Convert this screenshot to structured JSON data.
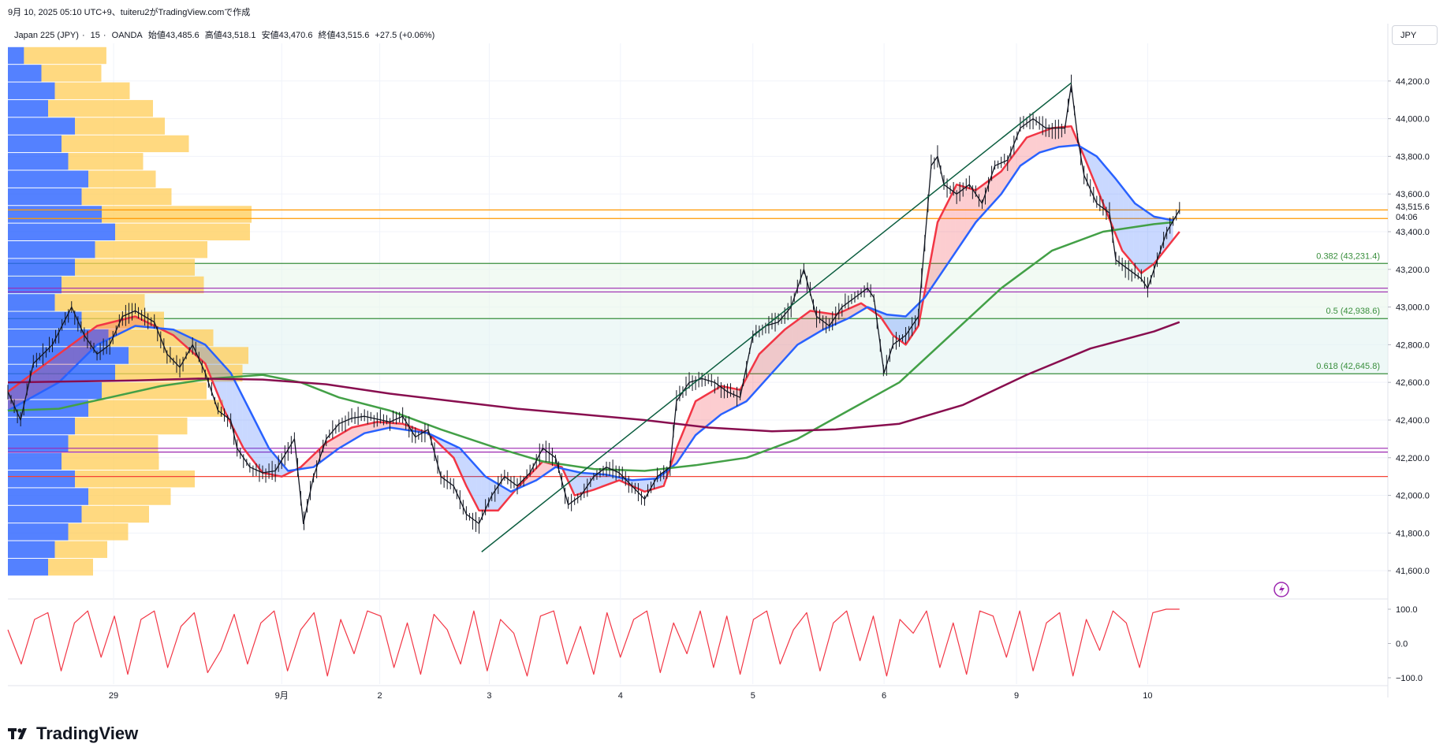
{
  "header": {
    "timestamp": "9月 10, 2025 05:10 UTC+9、tuiteru2がTradingView.comで作成"
  },
  "symbol": {
    "name": "Japan 225 (JPY)",
    "interval": "15",
    "broker": "OANDA",
    "open": "始値43,485.6",
    "high": "高値43,518.1",
    "low": "安値43,470.6",
    "close": "終値43,515.6",
    "change": "+27.5 (+0.06%)"
  },
  "currency": "JPY",
  "price_badge": {
    "value": "43,515.6",
    "countdown": "04:06"
  },
  "logo": {
    "text": "TradingView",
    "icon": "tradingview-logo-icon"
  },
  "colors": {
    "candle": "#131722",
    "ema_fast": "#f23645",
    "ema_mid": "#2962ff",
    "sma_200": "#43a047",
    "sma_long": "#880e4f",
    "bull_fill": "#f2364533",
    "bear_fill": "#2962ff33",
    "fib": "#388e3c",
    "channel": "#0b5d3f",
    "vp_up": "#2962ff",
    "vp_down": "#ffcc55",
    "osc": "#f23645",
    "price_line": "#ff9800"
  },
  "chart_data": {
    "type": "line",
    "title": "",
    "yaxis": {
      "range": [
        41450,
        44400
      ],
      "ticks": [
        {
          "value": 41600,
          "label": "41,600.0"
        },
        {
          "value": 41800,
          "label": "41,800.0"
        },
        {
          "value": 42000,
          "label": "42,000.0"
        },
        {
          "value": 42200,
          "label": "42,200.0"
        },
        {
          "value": 42400,
          "label": "42,400.0"
        },
        {
          "value": 42600,
          "label": "42,600.0"
        },
        {
          "value": 42800,
          "label": "42,800.0"
        },
        {
          "value": 43000,
          "label": "43,000.0"
        },
        {
          "value": 43200,
          "label": "43,200.0"
        },
        {
          "value": 43400,
          "label": "43,400.0"
        },
        {
          "value": 43600,
          "label": "43,600.0"
        },
        {
          "value": 43800,
          "label": "43,800.0"
        },
        {
          "value": 44000,
          "label": "44,000.0"
        },
        {
          "value": 44200,
          "label": "44,200.0"
        }
      ]
    },
    "xaxis": {
      "range": [
        0,
        1
      ],
      "ticks": [
        {
          "t": 0.083,
          "label": "29"
        },
        {
          "t": 0.215,
          "label": "9月"
        },
        {
          "t": 0.292,
          "label": "2"
        },
        {
          "t": 0.378,
          "label": "3"
        },
        {
          "t": 0.481,
          "label": "4"
        },
        {
          "t": 0.585,
          "label": "5"
        },
        {
          "t": 0.688,
          "label": "6"
        },
        {
          "t": 0.792,
          "label": "9"
        },
        {
          "t": 0.895,
          "label": "10"
        }
      ]
    },
    "price": [
      [
        0.0,
        42550
      ],
      [
        0.01,
        42400
      ],
      [
        0.02,
        42700
      ],
      [
        0.035,
        42800
      ],
      [
        0.05,
        43000
      ],
      [
        0.06,
        42850
      ],
      [
        0.07,
        42750
      ],
      [
        0.08,
        42800
      ],
      [
        0.09,
        42950
      ],
      [
        0.1,
        42980
      ],
      [
        0.115,
        42920
      ],
      [
        0.125,
        42750
      ],
      [
        0.135,
        42680
      ],
      [
        0.145,
        42800
      ],
      [
        0.155,
        42650
      ],
      [
        0.165,
        42450
      ],
      [
        0.175,
        42400
      ],
      [
        0.18,
        42250
      ],
      [
        0.19,
        42150
      ],
      [
        0.2,
        42120
      ],
      [
        0.21,
        42130
      ],
      [
        0.225,
        42300
      ],
      [
        0.232,
        41850
      ],
      [
        0.24,
        42100
      ],
      [
        0.25,
        42300
      ],
      [
        0.26,
        42380
      ],
      [
        0.27,
        42410
      ],
      [
        0.28,
        42420
      ],
      [
        0.3,
        42390
      ],
      [
        0.31,
        42420
      ],
      [
        0.32,
        42310
      ],
      [
        0.33,
        42350
      ],
      [
        0.34,
        42100
      ],
      [
        0.35,
        42050
      ],
      [
        0.36,
        41900
      ],
      [
        0.37,
        41850
      ],
      [
        0.38,
        42000
      ],
      [
        0.39,
        42100
      ],
      [
        0.4,
        42050
      ],
      [
        0.41,
        42120
      ],
      [
        0.42,
        42250
      ],
      [
        0.43,
        42200
      ],
      [
        0.44,
        41950
      ],
      [
        0.45,
        42000
      ],
      [
        0.46,
        42100
      ],
      [
        0.47,
        42150
      ],
      [
        0.48,
        42120
      ],
      [
        0.49,
        42050
      ],
      [
        0.5,
        41980
      ],
      [
        0.51,
        42100
      ],
      [
        0.52,
        42150
      ],
      [
        0.525,
        42500
      ],
      [
        0.535,
        42600
      ],
      [
        0.545,
        42620
      ],
      [
        0.555,
        42600
      ],
      [
        0.565,
        42550
      ],
      [
        0.575,
        42520
      ],
      [
        0.585,
        42850
      ],
      [
        0.595,
        42900
      ],
      [
        0.605,
        42920
      ],
      [
        0.615,
        43000
      ],
      [
        0.625,
        43200
      ],
      [
        0.635,
        42950
      ],
      [
        0.645,
        42900
      ],
      [
        0.655,
        43000
      ],
      [
        0.665,
        43050
      ],
      [
        0.675,
        43100
      ],
      [
        0.68,
        43050
      ],
      [
        0.688,
        42650
      ],
      [
        0.695,
        42800
      ],
      [
        0.705,
        42850
      ],
      [
        0.715,
        42950
      ],
      [
        0.72,
        43350
      ],
      [
        0.725,
        43750
      ],
      [
        0.73,
        43800
      ],
      [
        0.735,
        43650
      ],
      [
        0.745,
        43600
      ],
      [
        0.755,
        43650
      ],
      [
        0.765,
        43550
      ],
      [
        0.775,
        43750
      ],
      [
        0.785,
        43780
      ],
      [
        0.795,
        43950
      ],
      [
        0.805,
        44000
      ],
      [
        0.815,
        43950
      ],
      [
        0.825,
        43950
      ],
      [
        0.83,
        43950
      ],
      [
        0.835,
        44180
      ],
      [
        0.84,
        43900
      ],
      [
        0.845,
        43700
      ],
      [
        0.855,
        43550
      ],
      [
        0.865,
        43500
      ],
      [
        0.87,
        43250
      ],
      [
        0.88,
        43200
      ],
      [
        0.89,
        43150
      ],
      [
        0.895,
        43100
      ],
      [
        0.9,
        43200
      ],
      [
        0.91,
        43400
      ],
      [
        0.92,
        43515
      ]
    ],
    "series": [
      {
        "name": "",
        "color": "#f23645",
        "points": [
          [
            0.0,
            42550
          ],
          [
            0.04,
            42750
          ],
          [
            0.07,
            42900
          ],
          [
            0.1,
            42950
          ],
          [
            0.13,
            42850
          ],
          [
            0.155,
            42700
          ],
          [
            0.17,
            42450
          ],
          [
            0.185,
            42250
          ],
          [
            0.2,
            42120
          ],
          [
            0.215,
            42100
          ],
          [
            0.23,
            42150
          ],
          [
            0.25,
            42280
          ],
          [
            0.27,
            42360
          ],
          [
            0.29,
            42390
          ],
          [
            0.31,
            42380
          ],
          [
            0.33,
            42330
          ],
          [
            0.35,
            42200
          ],
          [
            0.36,
            42050
          ],
          [
            0.37,
            41920
          ],
          [
            0.385,
            41920
          ],
          [
            0.4,
            42040
          ],
          [
            0.42,
            42180
          ],
          [
            0.435,
            42150
          ],
          [
            0.445,
            42000
          ],
          [
            0.46,
            42030
          ],
          [
            0.48,
            42080
          ],
          [
            0.5,
            42020
          ],
          [
            0.515,
            42050
          ],
          [
            0.525,
            42250
          ],
          [
            0.54,
            42500
          ],
          [
            0.56,
            42580
          ],
          [
            0.575,
            42560
          ],
          [
            0.59,
            42750
          ],
          [
            0.61,
            42880
          ],
          [
            0.63,
            42980
          ],
          [
            0.65,
            42960
          ],
          [
            0.67,
            43020
          ],
          [
            0.685,
            42950
          ],
          [
            0.695,
            42850
          ],
          [
            0.705,
            42800
          ],
          [
            0.715,
            42900
          ],
          [
            0.73,
            43450
          ],
          [
            0.745,
            43650
          ],
          [
            0.76,
            43620
          ],
          [
            0.78,
            43720
          ],
          [
            0.8,
            43900
          ],
          [
            0.82,
            43950
          ],
          [
            0.835,
            43960
          ],
          [
            0.845,
            43800
          ],
          [
            0.86,
            43550
          ],
          [
            0.875,
            43300
          ],
          [
            0.89,
            43180
          ],
          [
            0.9,
            43230
          ],
          [
            0.92,
            43400
          ]
        ]
      },
      {
        "name": "",
        "color": "#2962ff",
        "points": [
          [
            0.0,
            42450
          ],
          [
            0.04,
            42600
          ],
          [
            0.07,
            42800
          ],
          [
            0.1,
            42900
          ],
          [
            0.13,
            42880
          ],
          [
            0.155,
            42800
          ],
          [
            0.175,
            42650
          ],
          [
            0.19,
            42450
          ],
          [
            0.205,
            42250
          ],
          [
            0.22,
            42130
          ],
          [
            0.24,
            42150
          ],
          [
            0.26,
            42250
          ],
          [
            0.28,
            42330
          ],
          [
            0.3,
            42360
          ],
          [
            0.33,
            42330
          ],
          [
            0.355,
            42250
          ],
          [
            0.375,
            42100
          ],
          [
            0.395,
            42020
          ],
          [
            0.415,
            42080
          ],
          [
            0.43,
            42150
          ],
          [
            0.45,
            42120
          ],
          [
            0.47,
            42110
          ],
          [
            0.49,
            42080
          ],
          [
            0.51,
            42090
          ],
          [
            0.525,
            42170
          ],
          [
            0.54,
            42320
          ],
          [
            0.56,
            42430
          ],
          [
            0.58,
            42500
          ],
          [
            0.6,
            42650
          ],
          [
            0.62,
            42800
          ],
          [
            0.64,
            42880
          ],
          [
            0.66,
            42940
          ],
          [
            0.675,
            43000
          ],
          [
            0.69,
            42960
          ],
          [
            0.705,
            42950
          ],
          [
            0.72,
            43050
          ],
          [
            0.74,
            43250
          ],
          [
            0.76,
            43450
          ],
          [
            0.78,
            43600
          ],
          [
            0.795,
            43750
          ],
          [
            0.81,
            43820
          ],
          [
            0.825,
            43850
          ],
          [
            0.84,
            43860
          ],
          [
            0.855,
            43800
          ],
          [
            0.87,
            43680
          ],
          [
            0.885,
            43550
          ],
          [
            0.9,
            43480
          ],
          [
            0.915,
            43460
          ]
        ]
      },
      {
        "name": "",
        "color": "#43a047",
        "points": [
          [
            0.0,
            42450
          ],
          [
            0.04,
            42460
          ],
          [
            0.08,
            42520
          ],
          [
            0.12,
            42580
          ],
          [
            0.16,
            42620
          ],
          [
            0.2,
            42640
          ],
          [
            0.23,
            42600
          ],
          [
            0.26,
            42520
          ],
          [
            0.3,
            42450
          ],
          [
            0.34,
            42350
          ],
          [
            0.38,
            42260
          ],
          [
            0.42,
            42180
          ],
          [
            0.46,
            42140
          ],
          [
            0.5,
            42130
          ],
          [
            0.54,
            42160
          ],
          [
            0.58,
            42200
          ],
          [
            0.62,
            42300
          ],
          [
            0.66,
            42450
          ],
          [
            0.7,
            42600
          ],
          [
            0.74,
            42850
          ],
          [
            0.78,
            43100
          ],
          [
            0.82,
            43300
          ],
          [
            0.86,
            43400
          ],
          [
            0.9,
            43440
          ],
          [
            0.915,
            43450
          ]
        ]
      },
      {
        "name": "",
        "color": "#880e4f",
        "points": [
          [
            0.0,
            42600
          ],
          [
            0.05,
            42605
          ],
          [
            0.1,
            42610
          ],
          [
            0.15,
            42620
          ],
          [
            0.2,
            42615
          ],
          [
            0.25,
            42590
          ],
          [
            0.3,
            42540
          ],
          [
            0.35,
            42500
          ],
          [
            0.4,
            42460
          ],
          [
            0.45,
            42430
          ],
          [
            0.5,
            42400
          ],
          [
            0.55,
            42360
          ],
          [
            0.6,
            42340
          ],
          [
            0.65,
            42350
          ],
          [
            0.7,
            42380
          ],
          [
            0.75,
            42480
          ],
          [
            0.8,
            42640
          ],
          [
            0.85,
            42780
          ],
          [
            0.9,
            42870
          ],
          [
            0.92,
            42920
          ]
        ]
      }
    ],
    "oscillator": {
      "range": [
        -100,
        100
      ],
      "ticks": [
        {
          "value": 100,
          "label": "100.0"
        },
        {
          "value": 0,
          "label": "0.0"
        },
        {
          "value": -100,
          "label": "−100.0"
        }
      ],
      "values": [
        40,
        -60,
        70,
        90,
        -80,
        60,
        95,
        -40,
        80,
        -90,
        70,
        95,
        -70,
        50,
        90,
        -85,
        -20,
        85,
        -60,
        60,
        95,
        -80,
        40,
        90,
        -95,
        70,
        -30,
        95,
        80,
        -70,
        60,
        -90,
        85,
        40,
        -60,
        95,
        -80,
        70,
        30,
        -95,
        80,
        95,
        -60,
        50,
        -90,
        90,
        -40,
        70,
        95,
        -85,
        60,
        -30,
        95,
        -70,
        80,
        -90,
        70,
        95,
        -60,
        40,
        90,
        -80,
        60,
        95,
        -50,
        80,
        -95,
        70,
        30,
        95,
        -70,
        60,
        -90,
        95,
        80,
        -40,
        95,
        -80,
        60,
        90,
        -95,
        70,
        -20,
        95,
        60,
        -70,
        90,
        100,
        100
      ]
    },
    "fib_levels": [
      {
        "value": 43231.4,
        "label": "0.382 (43,231.4)"
      },
      {
        "value": 42938.6,
        "label": "0.5 (42,938.6)"
      },
      {
        "value": 42645.8,
        "label": "0.618 (42,645.8)"
      }
    ],
    "horizontal_lines": [
      {
        "value": 43515.6,
        "color": "#ff9800"
      },
      {
        "value": 43470,
        "color": "#ff9800"
      },
      {
        "value": 43100,
        "color": "#9c27b0"
      },
      {
        "value": 43080,
        "color": "#9c27b0"
      },
      {
        "value": 42250,
        "color": "#9c27b0"
      },
      {
        "value": 42230,
        "color": "#9c27b0"
      },
      {
        "value": 42100,
        "color": "#f44336"
      }
    ],
    "channel": {
      "from": [
        0.372,
        41700
      ],
      "to": [
        0.835,
        44190
      ]
    },
    "volume_profile_up": [
      0.12,
      0.25,
      0.35,
      0.3,
      0.5,
      0.4,
      0.45,
      0.6,
      0.55,
      0.7,
      0.8,
      0.65,
      0.5,
      0.4,
      0.35,
      0.55,
      0.75,
      0.9,
      0.8,
      0.7,
      0.6,
      0.5,
      0.45,
      0.4,
      0.5,
      0.6,
      0.55,
      0.45,
      0.35,
      0.3
    ],
    "volume_profile_down": [
      0.55,
      0.4,
      0.5,
      0.7,
      0.6,
      0.85,
      0.5,
      0.45,
      0.6,
      1.0,
      0.9,
      0.75,
      0.8,
      0.95,
      0.6,
      0.55,
      0.7,
      0.8,
      0.85,
      0.7,
      0.9,
      0.75,
      0.6,
      0.65,
      0.8,
      0.55,
      0.45,
      0.4,
      0.35,
      0.3
    ]
  }
}
